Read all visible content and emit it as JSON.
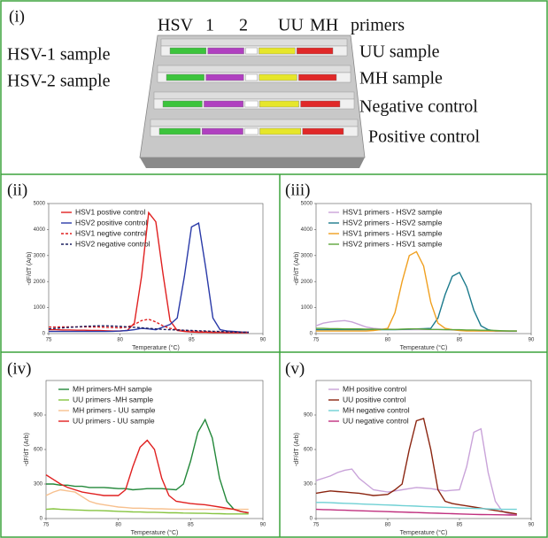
{
  "diagram": {
    "label": "(i)",
    "column_headers": [
      "HSV",
      "1",
      "2",
      "UU",
      "MH",
      "primers"
    ],
    "left_labels": [
      "HSV-1 sample",
      "HSV-2 sample"
    ],
    "right_labels": [
      "UU sample",
      "MH sample",
      "Negative control",
      "Positive control"
    ]
  },
  "chart_data": [
    {
      "type": "line",
      "label": "(ii)",
      "xlabel": "Temperature (°C)",
      "ylabel": "-dF/dT (Arb)",
      "x": [
        75,
        75.5,
        76,
        76.5,
        77,
        77.5,
        78,
        78.5,
        79,
        79.5,
        80,
        80.5,
        81,
        81.5,
        82,
        82.5,
        83,
        83.5,
        84,
        84.5,
        85,
        85.5,
        86,
        86.5,
        87,
        87.5,
        88,
        88.5,
        89
      ],
      "xlim": [
        75,
        90
      ],
      "xticks": [
        75,
        80,
        85,
        90
      ],
      "ylim": [
        0,
        5000
      ],
      "yticks": [
        0,
        1000,
        2000,
        3000,
        4000,
        5000
      ],
      "series": [
        {
          "name": "HSV1 postive control",
          "color": "#e02020",
          "dashed": false,
          "values": [
            150,
            150,
            140,
            140,
            130,
            130,
            120,
            120,
            110,
            100,
            100,
            120,
            400,
            2200,
            4650,
            4300,
            2300,
            500,
            120,
            80,
            60,
            50,
            50,
            40,
            40,
            30,
            30,
            30,
            30
          ]
        },
        {
          "name": "HSV2 positive control",
          "color": "#2a3aa8",
          "dashed": false,
          "values": [
            80,
            80,
            80,
            80,
            80,
            80,
            80,
            80,
            80,
            90,
            100,
            120,
            150,
            200,
            180,
            150,
            250,
            350,
            600,
            2200,
            4100,
            4250,
            2500,
            600,
            150,
            100,
            80,
            60,
            50
          ]
        },
        {
          "name": "HSV1 negtive control",
          "color": "#e02020",
          "dashed": true,
          "values": [
            250,
            250,
            260,
            260,
            260,
            260,
            250,
            250,
            240,
            230,
            220,
            250,
            350,
            500,
            550,
            450,
            300,
            200,
            150,
            120,
            100,
            80,
            80,
            70,
            60,
            60,
            50,
            50,
            50
          ]
        },
        {
          "name": "HSV2 negative control",
          "color": "#1c2060",
          "dashed": true,
          "values": [
            180,
            200,
            220,
            240,
            260,
            280,
            290,
            300,
            300,
            290,
            280,
            260,
            240,
            220,
            200,
            180,
            160,
            150,
            140,
            130,
            120,
            110,
            100,
            90,
            80,
            70,
            60,
            50,
            50
          ]
        }
      ]
    },
    {
      "type": "line",
      "label": "(iii)",
      "xlabel": "Temperature (°C)",
      "ylabel": "-dF/dT (Arb)",
      "x": [
        75,
        75.5,
        76,
        76.5,
        77,
        77.5,
        78,
        78.5,
        79,
        79.5,
        80,
        80.5,
        81,
        81.5,
        82,
        82.5,
        83,
        83.5,
        84,
        84.5,
        85,
        85.5,
        86,
        86.5,
        87,
        87.5,
        88,
        88.5,
        89
      ],
      "xlim": [
        75,
        90
      ],
      "xticks": [
        75,
        80,
        85,
        90
      ],
      "ylim": [
        0,
        5000
      ],
      "yticks": [
        0,
        1000,
        2000,
        3000,
        4000,
        5000
      ],
      "series": [
        {
          "name": "HSV1 primers - HSV2 sample",
          "color": "#c9a3d9",
          "dashed": false,
          "values": [
            300,
            400,
            450,
            480,
            500,
            450,
            350,
            250,
            200,
            180,
            170,
            160,
            150,
            150,
            150,
            150,
            150,
            150,
            150,
            140,
            130,
            120,
            110,
            100,
            100,
            90,
            90,
            80,
            80
          ]
        },
        {
          "name": "HSV2 primers - HSV2 sample",
          "color": "#1b7a8c",
          "dashed": false,
          "values": [
            150,
            150,
            150,
            150,
            150,
            150,
            150,
            150,
            150,
            150,
            150,
            150,
            160,
            170,
            180,
            190,
            200,
            600,
            1500,
            2200,
            2350,
            1800,
            900,
            300,
            150,
            100,
            100,
            100,
            100
          ]
        },
        {
          "name": "HSV1 primers - HSV1 sample",
          "color": "#f0a020",
          "dashed": false,
          "values": [
            100,
            100,
            100,
            100,
            100,
            100,
            100,
            100,
            120,
            150,
            200,
            800,
            2000,
            3000,
            3150,
            2600,
            1200,
            400,
            200,
            150,
            120,
            100,
            100,
            100,
            100,
            100,
            100,
            100,
            100
          ]
        },
        {
          "name": "HSV2 primers - HSV1 sample",
          "color": "#5ea63c",
          "dashed": false,
          "values": [
            200,
            200,
            190,
            190,
            180,
            180,
            180,
            170,
            170,
            160,
            160,
            160,
            170,
            180,
            180,
            170,
            160,
            160,
            150,
            150,
            150,
            140,
            140,
            130,
            130,
            120,
            110,
            100,
            100
          ]
        }
      ]
    },
    {
      "type": "line",
      "label": "(iv)",
      "xlabel": "Temperature (°C)",
      "ylabel": "-dF/dT (Arb)",
      "x": [
        75,
        75.5,
        76,
        76.5,
        77,
        77.5,
        78,
        78.5,
        79,
        79.5,
        80,
        80.5,
        81,
        81.5,
        82,
        82.5,
        83,
        83.5,
        84,
        84.5,
        85,
        85.5,
        86,
        86.5,
        87,
        87.5,
        88,
        88.5,
        89
      ],
      "xlim": [
        75,
        90
      ],
      "xticks": [
        75,
        80,
        85,
        90
      ],
      "ylim": [
        0,
        1200
      ],
      "yticks": [
        0,
        300,
        600,
        900
      ],
      "series": [
        {
          "name": "MH primers-MH sample",
          "color": "#23883a",
          "dashed": false,
          "values": [
            300,
            300,
            290,
            290,
            280,
            280,
            270,
            270,
            270,
            265,
            260,
            260,
            250,
            255,
            260,
            260,
            260,
            255,
            250,
            300,
            500,
            750,
            860,
            700,
            350,
            150,
            80,
            60,
            50
          ]
        },
        {
          "name": "UU primers -MH sample",
          "color": "#86c440",
          "dashed": false,
          "values": [
            80,
            85,
            80,
            78,
            75,
            72,
            70,
            70,
            68,
            65,
            62,
            60,
            58,
            57,
            55,
            55,
            52,
            50,
            50,
            48,
            47,
            45,
            45,
            43,
            42,
            40,
            40,
            40,
            40
          ]
        },
        {
          "name": "MH primers - UU sample",
          "color": "#f7c08e",
          "dashed": false,
          "values": [
            200,
            230,
            250,
            240,
            230,
            190,
            150,
            130,
            120,
            110,
            100,
            95,
            90,
            90,
            88,
            85,
            85,
            82,
            80,
            80,
            80,
            80,
            80,
            80,
            80,
            80,
            80,
            80,
            80
          ]
        },
        {
          "name": "UU primers - UU sample",
          "color": "#e02020",
          "dashed": false,
          "values": [
            380,
            340,
            300,
            270,
            250,
            230,
            220,
            210,
            200,
            200,
            200,
            250,
            450,
            620,
            680,
            600,
            350,
            200,
            150,
            140,
            130,
            125,
            120,
            110,
            100,
            90,
            80,
            60,
            50
          ]
        }
      ]
    },
    {
      "type": "line",
      "label": "(v)",
      "xlabel": "Temperature (°C)",
      "ylabel": "-dF/dT (Arb)",
      "x": [
        75,
        75.5,
        76,
        76.5,
        77,
        77.5,
        78,
        78.5,
        79,
        79.5,
        80,
        80.5,
        81,
        81.5,
        82,
        82.5,
        83,
        83.5,
        84,
        84.5,
        85,
        85.5,
        86,
        86.5,
        87,
        87.5,
        88,
        88.5,
        89
      ],
      "xlim": [
        75,
        90
      ],
      "xticks": [
        75,
        80,
        85,
        90
      ],
      "ylim": [
        0,
        1200
      ],
      "yticks": [
        0,
        300,
        600,
        900
      ],
      "series": [
        {
          "name": "MH positive control",
          "color": "#c9a3d9",
          "dashed": false,
          "values": [
            330,
            350,
            370,
            400,
            420,
            430,
            350,
            300,
            250,
            240,
            230,
            240,
            250,
            260,
            270,
            265,
            260,
            250,
            240,
            245,
            250,
            450,
            750,
            780,
            400,
            150,
            60,
            40,
            30
          ]
        },
        {
          "name": "UU positive control",
          "color": "#8b2510",
          "dashed": false,
          "values": [
            220,
            230,
            240,
            235,
            230,
            225,
            220,
            210,
            200,
            205,
            210,
            250,
            300,
            600,
            850,
            870,
            600,
            250,
            150,
            130,
            120,
            110,
            100,
            90,
            80,
            70,
            60,
            50,
            40
          ]
        },
        {
          "name": "MH negative control",
          "color": "#6fd0d4",
          "dashed": false,
          "values": [
            140,
            140,
            138,
            135,
            132,
            130,
            128,
            125,
            122,
            120,
            118,
            115,
            112,
            110,
            108,
            105,
            102,
            100,
            98,
            95,
            92,
            90,
            88,
            86,
            84,
            82,
            80,
            80,
            80
          ]
        },
        {
          "name": "UU negative control",
          "color": "#c0307f",
          "dashed": false,
          "values": [
            80,
            78,
            76,
            74,
            72,
            70,
            68,
            66,
            64,
            62,
            60,
            58,
            56,
            54,
            52,
            50,
            48,
            46,
            44,
            42,
            40,
            38,
            36,
            35,
            34,
            33,
            32,
            31,
            30
          ]
        }
      ]
    }
  ]
}
